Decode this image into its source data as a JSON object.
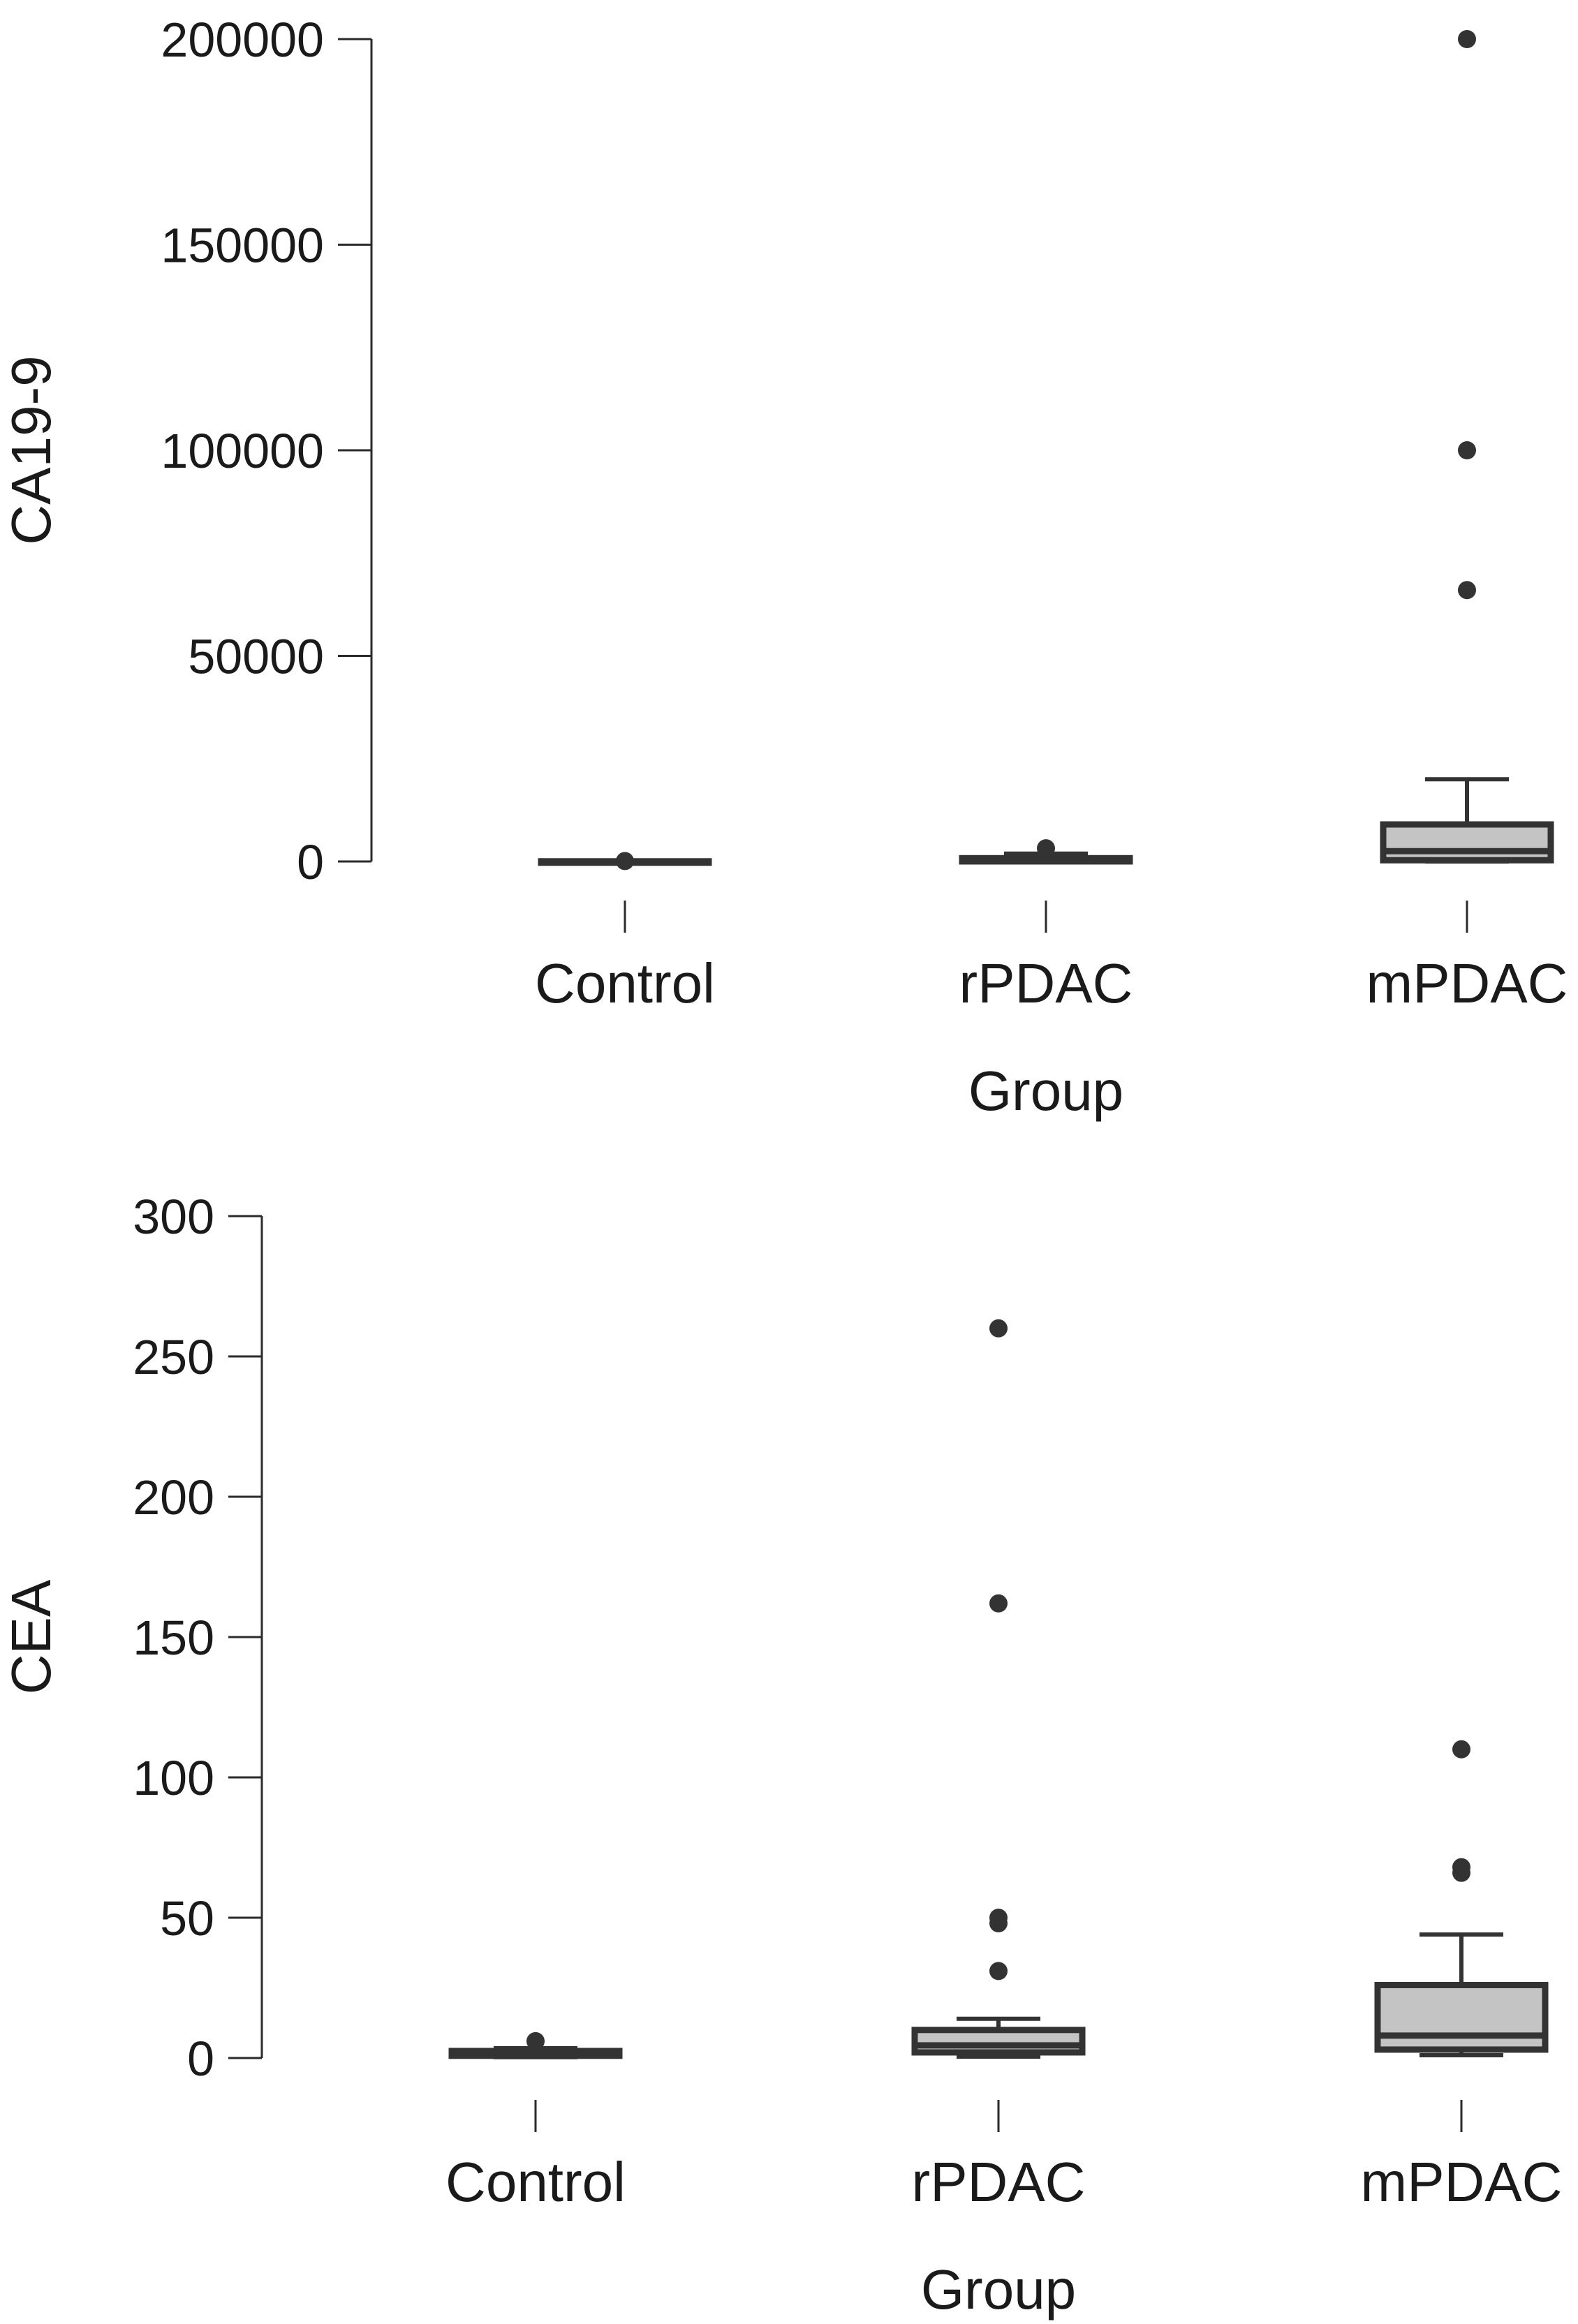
{
  "chart_data": [
    {
      "type": "box",
      "xlabel": "Group",
      "ylabel": "CA19-9",
      "categories": [
        "Control",
        "rPDAC",
        "mPDAC"
      ],
      "yticks": [
        0,
        50000,
        100000,
        150000,
        200000
      ],
      "ylim": [
        0,
        200000
      ],
      "grid": false,
      "boxes": [
        {
          "category": "Control",
          "q1": 0,
          "median": 10,
          "q3": 40,
          "whisker_low": 0,
          "whisker_high": 80,
          "outliers": [
            100
          ]
        },
        {
          "category": "rPDAC",
          "q1": 10,
          "median": 150,
          "q3": 800,
          "whisker_low": 0,
          "whisker_high": 1900,
          "outliers": [
            3200
          ]
        },
        {
          "category": "mPDAC",
          "q1": 300,
          "median": 2500,
          "q3": 9000,
          "whisker_low": 0,
          "whisker_high": 20000,
          "outliers": [
            66000,
            100000,
            200000
          ]
        }
      ]
    },
    {
      "type": "box",
      "xlabel": "Group",
      "ylabel": "CEA",
      "categories": [
        "Control",
        "rPDAC",
        "mPDAC"
      ],
      "yticks": [
        0,
        50,
        100,
        150,
        200,
        250,
        300
      ],
      "ylim": [
        0,
        300
      ],
      "grid": false,
      "boxes": [
        {
          "category": "Control",
          "q1": 0.8,
          "median": 1.5,
          "q3": 2.5,
          "whisker_low": 0.3,
          "whisker_high": 3.5,
          "outliers": [
            6
          ]
        },
        {
          "category": "rPDAC",
          "q1": 2,
          "median": 4.5,
          "q3": 10,
          "whisker_low": 0.5,
          "whisker_high": 14,
          "outliers": [
            31,
            48,
            50,
            162,
            260
          ]
        },
        {
          "category": "mPDAC",
          "q1": 3,
          "median": 8,
          "q3": 26,
          "whisker_low": 1,
          "whisker_high": 44,
          "outliers": [
            66,
            68,
            110
          ]
        }
      ]
    }
  ]
}
